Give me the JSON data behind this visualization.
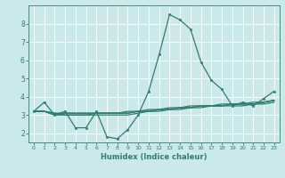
{
  "xlabel": "Humidex (Indice chaleur)",
  "ylabel": "",
  "bg_color": "#cce9e9",
  "grid_color": "#ffffff",
  "line_color": "#2e7d6e",
  "spine_color": "#4a8a80",
  "xlim": [
    -0.5,
    23.5
  ],
  "ylim": [
    1.5,
    9.0
  ],
  "yticks": [
    2,
    3,
    4,
    5,
    6,
    7,
    8
  ],
  "xticks": [
    0,
    1,
    2,
    3,
    4,
    5,
    6,
    7,
    8,
    9,
    10,
    11,
    12,
    13,
    14,
    15,
    16,
    17,
    18,
    19,
    20,
    21,
    22,
    23
  ],
  "series": [
    [
      3.2,
      3.7,
      3.0,
      3.2,
      2.3,
      2.3,
      3.2,
      1.8,
      1.7,
      2.2,
      3.0,
      4.3,
      6.3,
      8.5,
      8.2,
      7.7,
      5.9,
      4.9,
      4.4,
      3.5,
      3.7,
      3.5,
      3.9,
      4.3
    ],
    [
      3.2,
      3.2,
      3.0,
      3.1,
      3.1,
      3.1,
      3.1,
      3.1,
      3.1,
      3.2,
      3.2,
      3.3,
      3.3,
      3.4,
      3.4,
      3.5,
      3.5,
      3.5,
      3.6,
      3.6,
      3.6,
      3.7,
      3.7,
      3.8
    ],
    [
      3.2,
      3.2,
      3.1,
      3.1,
      3.1,
      3.1,
      3.1,
      3.1,
      3.1,
      3.1,
      3.2,
      3.2,
      3.3,
      3.3,
      3.4,
      3.4,
      3.5,
      3.5,
      3.5,
      3.6,
      3.6,
      3.6,
      3.7,
      3.8
    ],
    [
      3.2,
      3.2,
      3.1,
      3.0,
      3.0,
      3.0,
      3.1,
      3.1,
      3.1,
      3.1,
      3.2,
      3.2,
      3.3,
      3.3,
      3.4,
      3.4,
      3.5,
      3.5,
      3.5,
      3.6,
      3.6,
      3.6,
      3.7,
      3.8
    ],
    [
      3.2,
      3.2,
      3.0,
      3.0,
      3.0,
      3.0,
      3.0,
      3.0,
      3.0,
      3.0,
      3.1,
      3.2,
      3.2,
      3.3,
      3.3,
      3.4,
      3.4,
      3.5,
      3.5,
      3.5,
      3.5,
      3.6,
      3.6,
      3.7
    ]
  ],
  "xlabel_fontsize": 6.0,
  "xtick_fontsize": 4.5,
  "ytick_fontsize": 5.5,
  "marker_size": 1.8,
  "line_width": 0.9
}
